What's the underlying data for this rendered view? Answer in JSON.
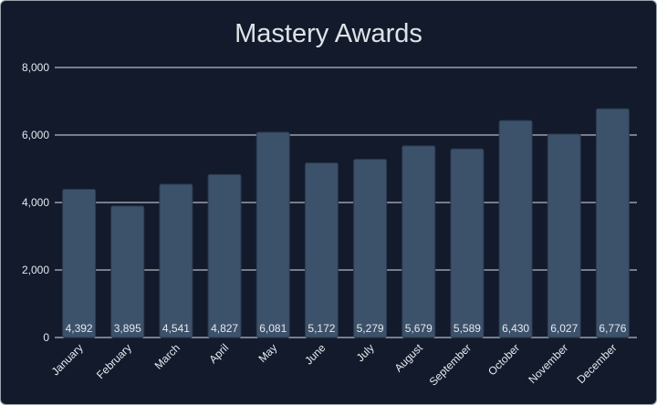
{
  "colors": {
    "background": "#121a2c",
    "bar": "#3c516a",
    "bar_stroke": "#2a3a4e",
    "grid": "#dde2e8",
    "text": "#e6e9ed"
  },
  "chart_data": {
    "type": "bar",
    "title": "Mastery Awards",
    "xlabel": "",
    "ylabel": "",
    "categories": [
      "January",
      "February",
      "March",
      "April",
      "May",
      "June",
      "July",
      "August",
      "September",
      "October",
      "November",
      "December"
    ],
    "values": [
      4392,
      3895,
      4541,
      4827,
      6081,
      5172,
      5279,
      5679,
      5589,
      6430,
      6027,
      6776
    ],
    "value_labels": [
      "4,392",
      "3,895",
      "4,541",
      "4,827",
      "6,081",
      "5,172",
      "5,279",
      "5,679",
      "5,589",
      "6,430",
      "6,027",
      "6,776"
    ],
    "ylim": [
      0,
      8000
    ],
    "yticks": [
      0,
      2000,
      4000,
      6000,
      8000
    ],
    "ytick_labels": [
      "0",
      "2,000",
      "4,000",
      "6,000",
      "8,000"
    ],
    "grid": true,
    "legend": "none",
    "data_labels_position": "inside-bottom",
    "x_tick_rotation_deg": -45
  }
}
